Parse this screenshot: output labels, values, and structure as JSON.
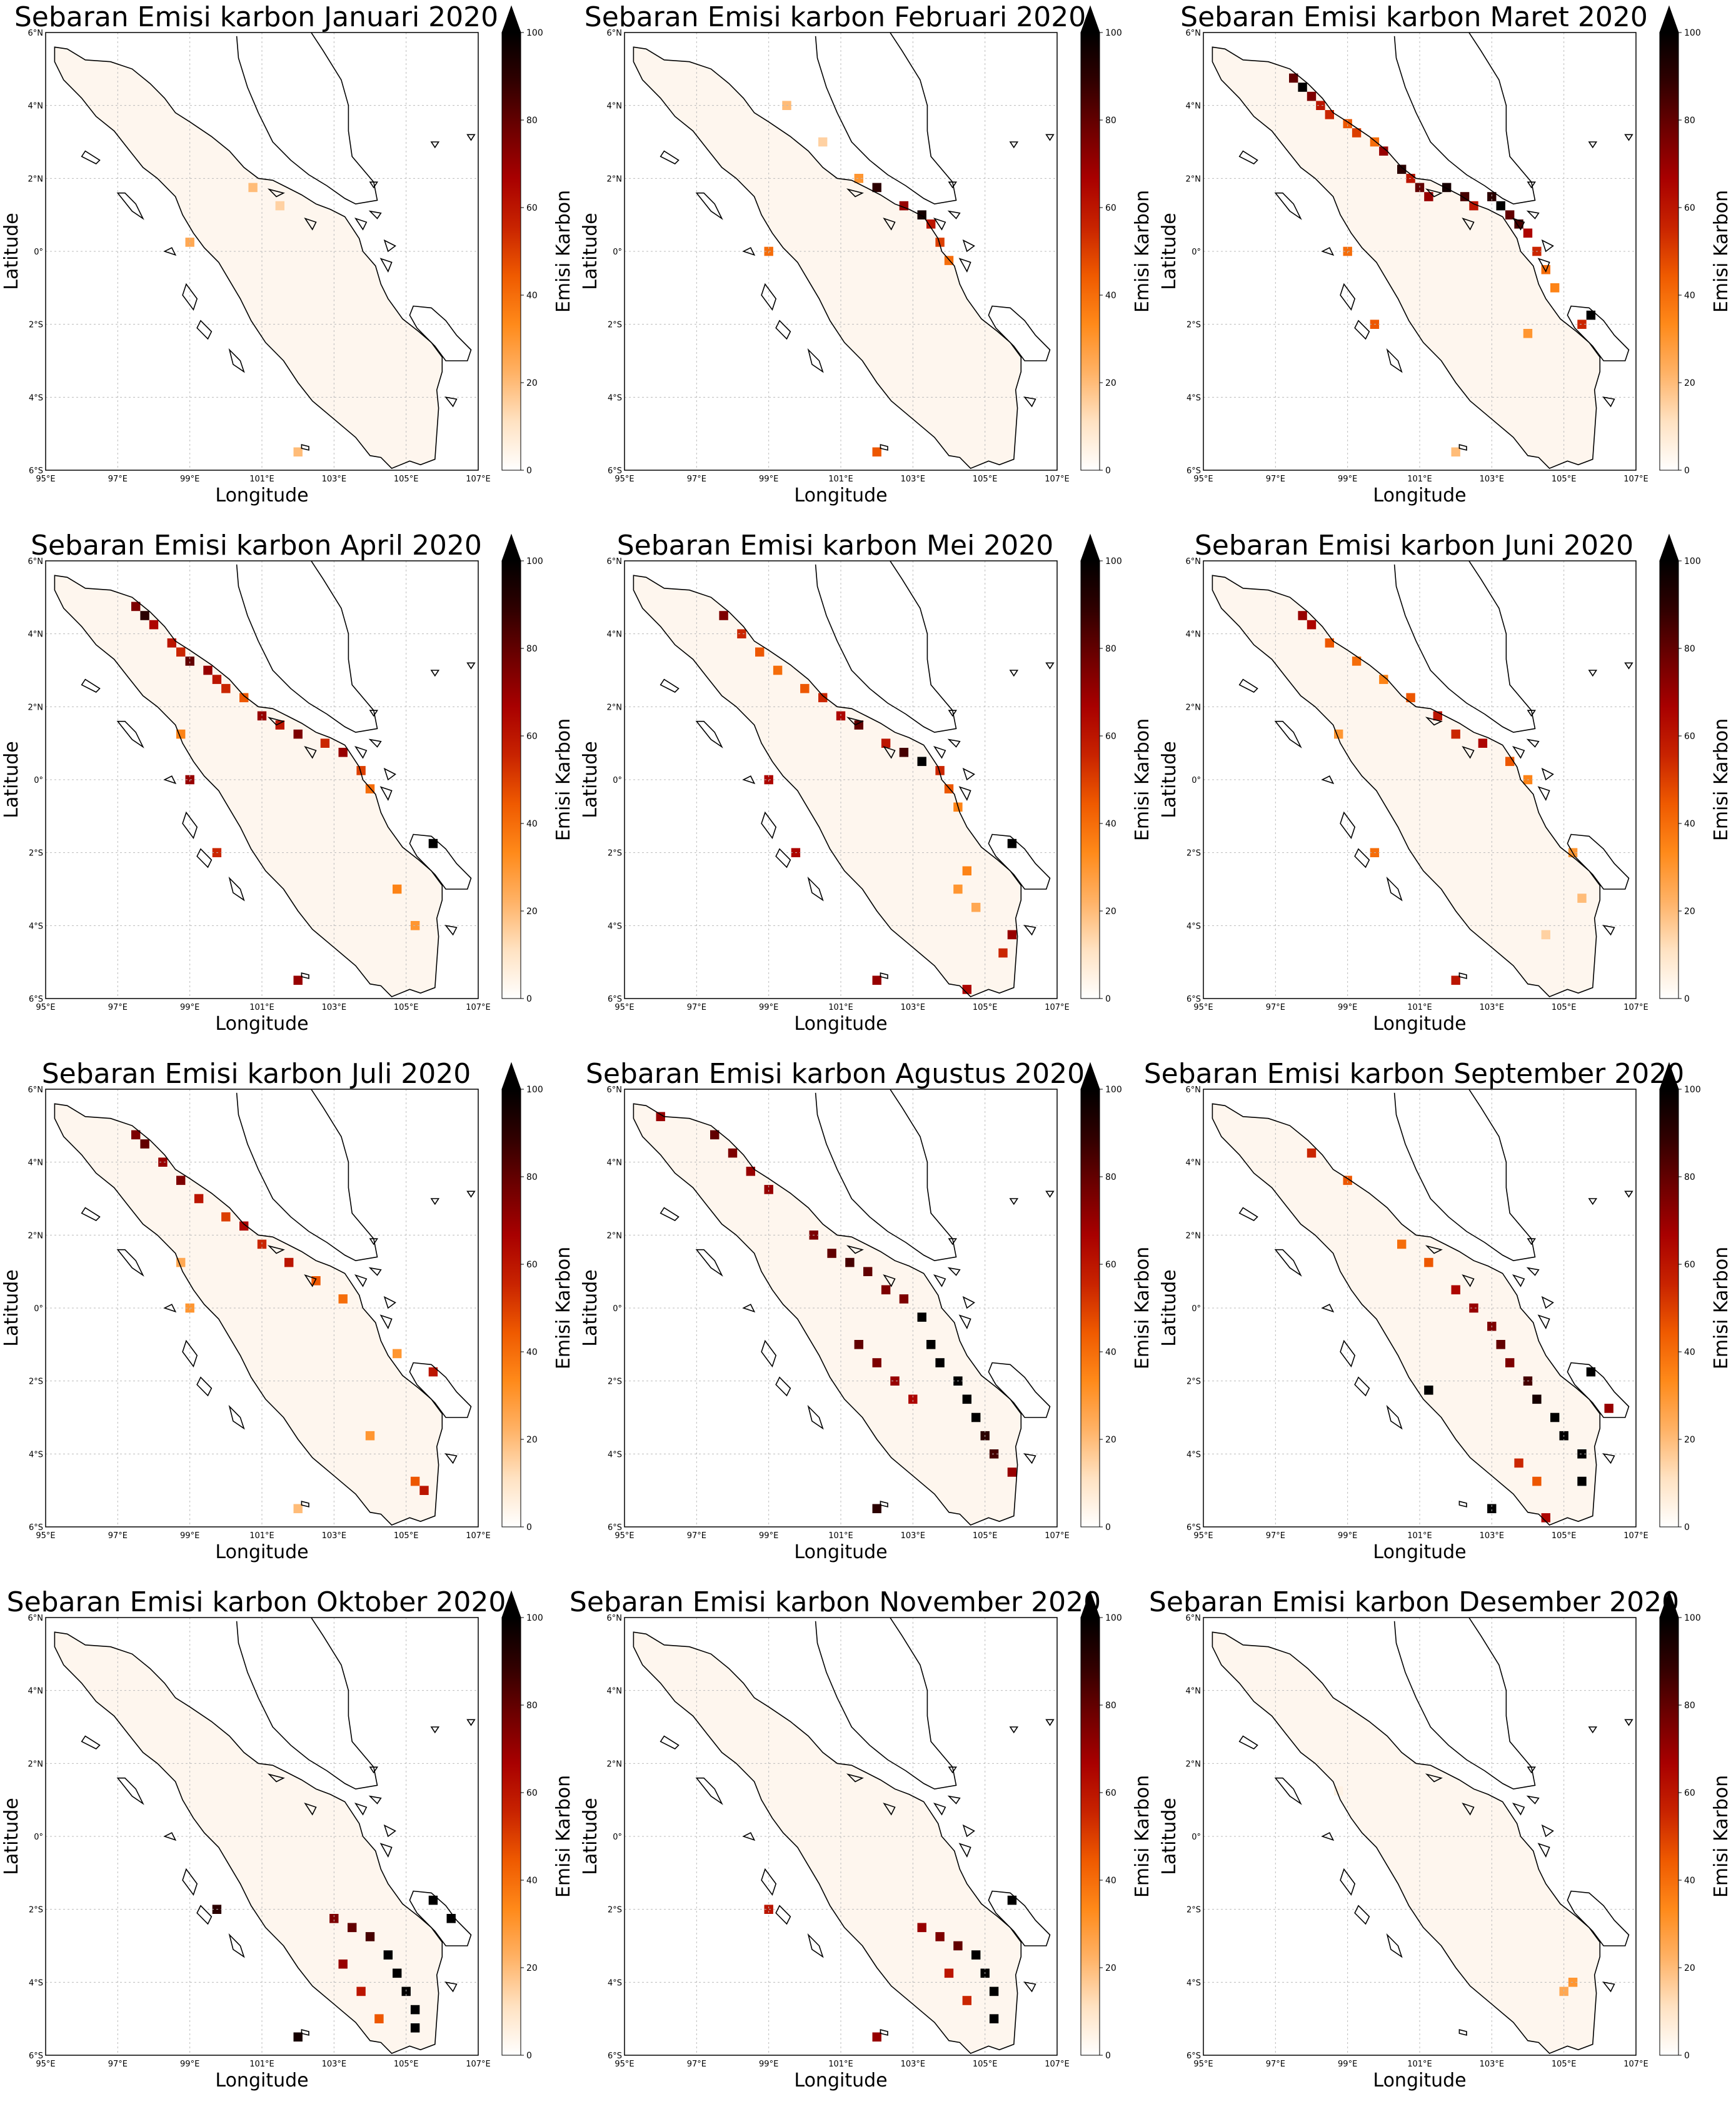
{
  "figure": {
    "colormap": [
      "#ffffff",
      "#ffe2c2",
      "#ffb266",
      "#ff8a1a",
      "#ef5a00",
      "#c82300",
      "#a80000",
      "#6e0000",
      "#300000",
      "#000000"
    ]
  },
  "axes": {
    "xlabel": "Longitude",
    "ylabel": "Latitude",
    "xticks": [
      "95°E",
      "97°E",
      "99°E",
      "101°E",
      "103°E",
      "105°E",
      "107°E"
    ],
    "yticks": [
      "6°N",
      "4°N",
      "2°N",
      "0°",
      "2°S",
      "4°S",
      "6°S"
    ],
    "xlim": [
      95,
      107
    ],
    "ylim": [
      -6,
      6
    ]
  },
  "colorbar": {
    "label": "Emisi Karbon",
    "ticks": [
      "0",
      "20",
      "40",
      "60",
      "80",
      "100"
    ],
    "range": [
      0,
      100
    ],
    "extend": "max"
  },
  "panels": [
    {
      "title": "Sebaran Emisi karbon Januari 2020",
      "month": "Januari"
    },
    {
      "title": "Sebaran Emisi karbon Februari 2020",
      "month": "Februari"
    },
    {
      "title": "Sebaran Emisi karbon Maret 2020",
      "month": "Maret"
    },
    {
      "title": "Sebaran Emisi karbon April 2020",
      "month": "April"
    },
    {
      "title": "Sebaran Emisi karbon Mei 2020",
      "month": "Mei"
    },
    {
      "title": "Sebaran Emisi karbon Juni 2020",
      "month": "Juni"
    },
    {
      "title": "Sebaran Emisi karbon Juli 2020",
      "month": "Juli"
    },
    {
      "title": "Sebaran Emisi karbon Agustus 2020",
      "month": "Agustus"
    },
    {
      "title": "Sebaran Emisi karbon September 2020",
      "month": "September"
    },
    {
      "title": "Sebaran Emisi karbon Oktober 2020",
      "month": "Oktober"
    },
    {
      "title": "Sebaran Emisi karbon November 2020",
      "month": "November"
    },
    {
      "title": "Sebaran Emisi karbon Desember 2020",
      "month": "Desember"
    }
  ],
  "chart_data": {
    "type": "heatmap",
    "cell_size_deg": 0.25,
    "note_units": "Emisi Karbon",
    "months": [
      {
        "month": "Januari",
        "cells": [
          [
            100.75,
            1.75,
            20
          ],
          [
            99.0,
            0.25,
            25
          ],
          [
            101.5,
            1.25,
            15
          ],
          [
            102.0,
            -5.5,
            20
          ]
        ]
      },
      {
        "month": "Februari",
        "cells": [
          [
            99.5,
            4.0,
            20
          ],
          [
            100.5,
            3.0,
            15
          ],
          [
            101.5,
            2.0,
            30
          ],
          [
            102.0,
            1.75,
            90
          ],
          [
            103.25,
            1.0,
            95
          ],
          [
            102.75,
            1.25,
            70
          ],
          [
            103.5,
            0.75,
            60
          ],
          [
            103.75,
            0.25,
            50
          ],
          [
            104.0,
            -0.25,
            40
          ],
          [
            99.0,
            0.0,
            40
          ],
          [
            102.0,
            -5.5,
            45
          ]
        ]
      },
      {
        "month": "Maret",
        "cells": [
          [
            97.5,
            4.75,
            80
          ],
          [
            97.75,
            4.5,
            100
          ],
          [
            98.0,
            4.25,
            75
          ],
          [
            98.25,
            4.0,
            60
          ],
          [
            98.5,
            3.75,
            55
          ],
          [
            99.0,
            3.5,
            45
          ],
          [
            99.25,
            3.25,
            50
          ],
          [
            99.75,
            3.0,
            40
          ],
          [
            100.0,
            2.75,
            70
          ],
          [
            100.5,
            2.25,
            90
          ],
          [
            100.75,
            2.0,
            60
          ],
          [
            101.0,
            1.75,
            80
          ],
          [
            101.25,
            1.5,
            70
          ],
          [
            101.75,
            1.75,
            95
          ],
          [
            102.25,
            1.5,
            85
          ],
          [
            102.5,
            1.25,
            60
          ],
          [
            103.0,
            1.5,
            90
          ],
          [
            103.25,
            1.25,
            100
          ],
          [
            103.5,
            1.0,
            80
          ],
          [
            103.75,
            0.75,
            85
          ],
          [
            104.0,
            0.5,
            65
          ],
          [
            104.25,
            0.0,
            55
          ],
          [
            104.5,
            -0.5,
            40
          ],
          [
            104.75,
            -1.0,
            35
          ],
          [
            105.75,
            -1.75,
            100
          ],
          [
            105.5,
            -2.0,
            55
          ],
          [
            99.0,
            0.0,
            40
          ],
          [
            99.75,
            -2.0,
            45
          ],
          [
            104.0,
            -2.25,
            30
          ],
          [
            102.0,
            -5.5,
            20
          ]
        ]
      },
      {
        "month": "April",
        "cells": [
          [
            97.5,
            4.75,
            75
          ],
          [
            97.75,
            4.5,
            90
          ],
          [
            98.0,
            4.25,
            65
          ],
          [
            98.5,
            3.75,
            60
          ],
          [
            98.75,
            3.5,
            55
          ],
          [
            99.0,
            3.25,
            80
          ],
          [
            99.5,
            3.0,
            70
          ],
          [
            99.75,
            2.75,
            60
          ],
          [
            100.0,
            2.5,
            55
          ],
          [
            100.5,
            2.25,
            45
          ],
          [
            101.0,
            1.75,
            70
          ],
          [
            101.5,
            1.5,
            60
          ],
          [
            102.0,
            1.25,
            75
          ],
          [
            102.75,
            1.0,
            55
          ],
          [
            103.25,
            0.75,
            70
          ],
          [
            103.75,
            0.25,
            50
          ],
          [
            104.0,
            -0.25,
            40
          ],
          [
            105.75,
            -1.75,
            100
          ],
          [
            98.75,
            1.25,
            35
          ],
          [
            99.0,
            0.0,
            70
          ],
          [
            99.75,
            -2.0,
            55
          ],
          [
            102.0,
            -5.5,
            70
          ],
          [
            104.75,
            -3.0,
            35
          ],
          [
            105.25,
            -4.0,
            30
          ]
        ]
      },
      {
        "month": "Mei",
        "cells": [
          [
            97.75,
            4.5,
            75
          ],
          [
            98.25,
            4.0,
            55
          ],
          [
            98.75,
            3.5,
            45
          ],
          [
            99.25,
            3.0,
            40
          ],
          [
            100.0,
            2.5,
            45
          ],
          [
            100.5,
            2.25,
            55
          ],
          [
            101.0,
            1.75,
            65
          ],
          [
            101.5,
            1.5,
            80
          ],
          [
            102.25,
            1.0,
            60
          ],
          [
            102.75,
            0.75,
            85
          ],
          [
            103.25,
            0.5,
            100
          ],
          [
            103.75,
            0.25,
            55
          ],
          [
            104.0,
            -0.25,
            45
          ],
          [
            104.25,
            -0.75,
            35
          ],
          [
            105.75,
            -1.75,
            100
          ],
          [
            104.5,
            -2.5,
            35
          ],
          [
            104.25,
            -3.0,
            30
          ],
          [
            104.75,
            -3.5,
            25
          ],
          [
            105.75,
            -4.25,
            70
          ],
          [
            105.5,
            -4.75,
            55
          ],
          [
            99.0,
            0.0,
            65
          ],
          [
            99.75,
            -2.0,
            65
          ],
          [
            102.0,
            -5.5,
            70
          ],
          [
            104.5,
            -5.75,
            65
          ]
        ]
      },
      {
        "month": "Juni",
        "cells": [
          [
            97.75,
            4.5,
            70
          ],
          [
            98.0,
            4.25,
            65
          ],
          [
            98.5,
            3.75,
            45
          ],
          [
            99.25,
            3.25,
            40
          ],
          [
            100.0,
            2.75,
            35
          ],
          [
            100.75,
            2.25,
            45
          ],
          [
            101.5,
            1.75,
            60
          ],
          [
            102.0,
            1.25,
            55
          ],
          [
            102.75,
            1.0,
            65
          ],
          [
            103.5,
            0.5,
            45
          ],
          [
            104.0,
            0.0,
            35
          ],
          [
            105.25,
            -2.0,
            30
          ],
          [
            105.5,
            -3.25,
            20
          ],
          [
            104.5,
            -4.25,
            15
          ],
          [
            98.75,
            1.25,
            30
          ],
          [
            99.75,
            -2.0,
            40
          ],
          [
            102.0,
            -5.5,
            60
          ]
        ]
      },
      {
        "month": "Juli",
        "cells": [
          [
            97.5,
            4.75,
            75
          ],
          [
            97.75,
            4.5,
            80
          ],
          [
            98.25,
            4.0,
            70
          ],
          [
            98.75,
            3.5,
            75
          ],
          [
            99.25,
            3.0,
            60
          ],
          [
            100.0,
            2.5,
            50
          ],
          [
            100.5,
            2.25,
            65
          ],
          [
            101.0,
            1.75,
            55
          ],
          [
            101.75,
            1.25,
            60
          ],
          [
            102.5,
            0.75,
            45
          ],
          [
            103.25,
            0.25,
            40
          ],
          [
            104.75,
            -1.25,
            30
          ],
          [
            105.75,
            -1.75,
            60
          ],
          [
            105.25,
            -4.75,
            45
          ],
          [
            105.5,
            -5.0,
            60
          ],
          [
            104.0,
            -3.5,
            30
          ],
          [
            98.75,
            1.25,
            25
          ],
          [
            99.0,
            0.0,
            30
          ],
          [
            102.0,
            -5.5,
            20
          ]
        ]
      },
      {
        "month": "Agustus",
        "cells": [
          [
            96.0,
            5.25,
            70
          ],
          [
            97.5,
            4.75,
            80
          ],
          [
            98.0,
            4.25,
            75
          ],
          [
            98.5,
            3.75,
            70
          ],
          [
            99.0,
            3.25,
            70
          ],
          [
            100.25,
            2.0,
            75
          ],
          [
            100.75,
            1.5,
            80
          ],
          [
            101.25,
            1.25,
            85
          ],
          [
            101.75,
            1.0,
            80
          ],
          [
            102.25,
            0.5,
            75
          ],
          [
            102.75,
            0.25,
            75
          ],
          [
            103.25,
            -0.25,
            100
          ],
          [
            103.5,
            -1.0,
            100
          ],
          [
            103.75,
            -1.5,
            100
          ],
          [
            104.25,
            -2.0,
            100
          ],
          [
            104.5,
            -2.5,
            100
          ],
          [
            104.75,
            -3.0,
            100
          ],
          [
            105.0,
            -3.5,
            90
          ],
          [
            105.25,
            -4.0,
            85
          ],
          [
            105.75,
            -4.5,
            70
          ],
          [
            103.0,
            -2.5,
            65
          ],
          [
            102.5,
            -2.0,
            70
          ],
          [
            102.0,
            -1.5,
            75
          ],
          [
            101.5,
            -1.0,
            80
          ],
          [
            102.0,
            -5.5,
            90
          ]
        ]
      },
      {
        "month": "September",
        "cells": [
          [
            98.0,
            4.25,
            55
          ],
          [
            99.0,
            3.5,
            45
          ],
          [
            100.5,
            1.75,
            40
          ],
          [
            101.25,
            1.25,
            45
          ],
          [
            102.0,
            0.5,
            65
          ],
          [
            102.5,
            0.0,
            70
          ],
          [
            103.0,
            -0.5,
            75
          ],
          [
            103.25,
            -1.0,
            80
          ],
          [
            103.5,
            -1.5,
            75
          ],
          [
            104.0,
            -2.0,
            85
          ],
          [
            104.25,
            -2.5,
            95
          ],
          [
            104.75,
            -3.0,
            100
          ],
          [
            105.0,
            -3.5,
            100
          ],
          [
            105.5,
            -4.0,
            100
          ],
          [
            105.5,
            -4.75,
            100
          ],
          [
            103.75,
            -4.25,
            55
          ],
          [
            104.25,
            -4.75,
            45
          ],
          [
            105.75,
            -1.75,
            100
          ],
          [
            106.25,
            -2.75,
            70
          ],
          [
            101.25,
            -2.25,
            100
          ],
          [
            103.0,
            -5.5,
            100
          ],
          [
            104.5,
            -5.75,
            65
          ]
        ]
      },
      {
        "month": "Oktober",
        "cells": [
          [
            103.0,
            -2.25,
            75
          ],
          [
            103.5,
            -2.5,
            80
          ],
          [
            104.0,
            -2.75,
            85
          ],
          [
            104.5,
            -3.25,
            100
          ],
          [
            104.75,
            -3.75,
            100
          ],
          [
            105.0,
            -4.25,
            100
          ],
          [
            105.25,
            -4.75,
            100
          ],
          [
            103.25,
            -3.5,
            70
          ],
          [
            103.75,
            -4.25,
            60
          ],
          [
            104.25,
            -5.0,
            45
          ],
          [
            105.75,
            -1.75,
            100
          ],
          [
            106.25,
            -2.25,
            100
          ],
          [
            99.75,
            -2.0,
            90
          ],
          [
            102.0,
            -5.5,
            95
          ],
          [
            105.25,
            -5.25,
            100
          ]
        ]
      },
      {
        "month": "November",
        "cells": [
          [
            103.25,
            -2.5,
            70
          ],
          [
            103.75,
            -2.75,
            75
          ],
          [
            104.25,
            -3.0,
            80
          ],
          [
            104.75,
            -3.25,
            100
          ],
          [
            105.0,
            -3.75,
            100
          ],
          [
            105.25,
            -4.25,
            100
          ],
          [
            105.25,
            -5.0,
            100
          ],
          [
            104.0,
            -3.75,
            60
          ],
          [
            104.5,
            -4.5,
            55
          ],
          [
            105.75,
            -1.75,
            100
          ],
          [
            99.0,
            -2.0,
            60
          ],
          [
            102.0,
            -5.5,
            70
          ]
        ]
      },
      {
        "month": "Desember",
        "cells": [
          [
            105.25,
            -4.0,
            30
          ],
          [
            105.0,
            -4.25,
            25
          ],
          [
            98.75,
            1.25,
            5
          ]
        ]
      }
    ]
  }
}
